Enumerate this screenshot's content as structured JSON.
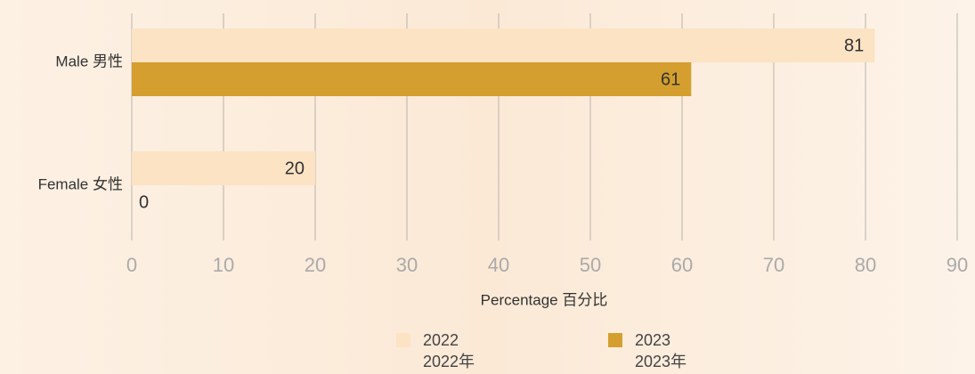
{
  "chart_data": {
    "type": "bar",
    "orientation": "horizontal",
    "categories": [
      "Male 男性",
      "Female 女性"
    ],
    "series": [
      {
        "name": "2022\n2022年",
        "color": "#fbe3c4",
        "values": [
          81,
          20
        ]
      },
      {
        "name": "2023\n2023年",
        "color": "#d49f2e",
        "values": [
          61,
          0
        ]
      }
    ],
    "xlabel": "Percentage 百分比",
    "xlim": [
      0,
      90
    ],
    "xticks": [
      0,
      10,
      20,
      30,
      40,
      50,
      60,
      70,
      80,
      90
    ],
    "grid": true
  }
}
